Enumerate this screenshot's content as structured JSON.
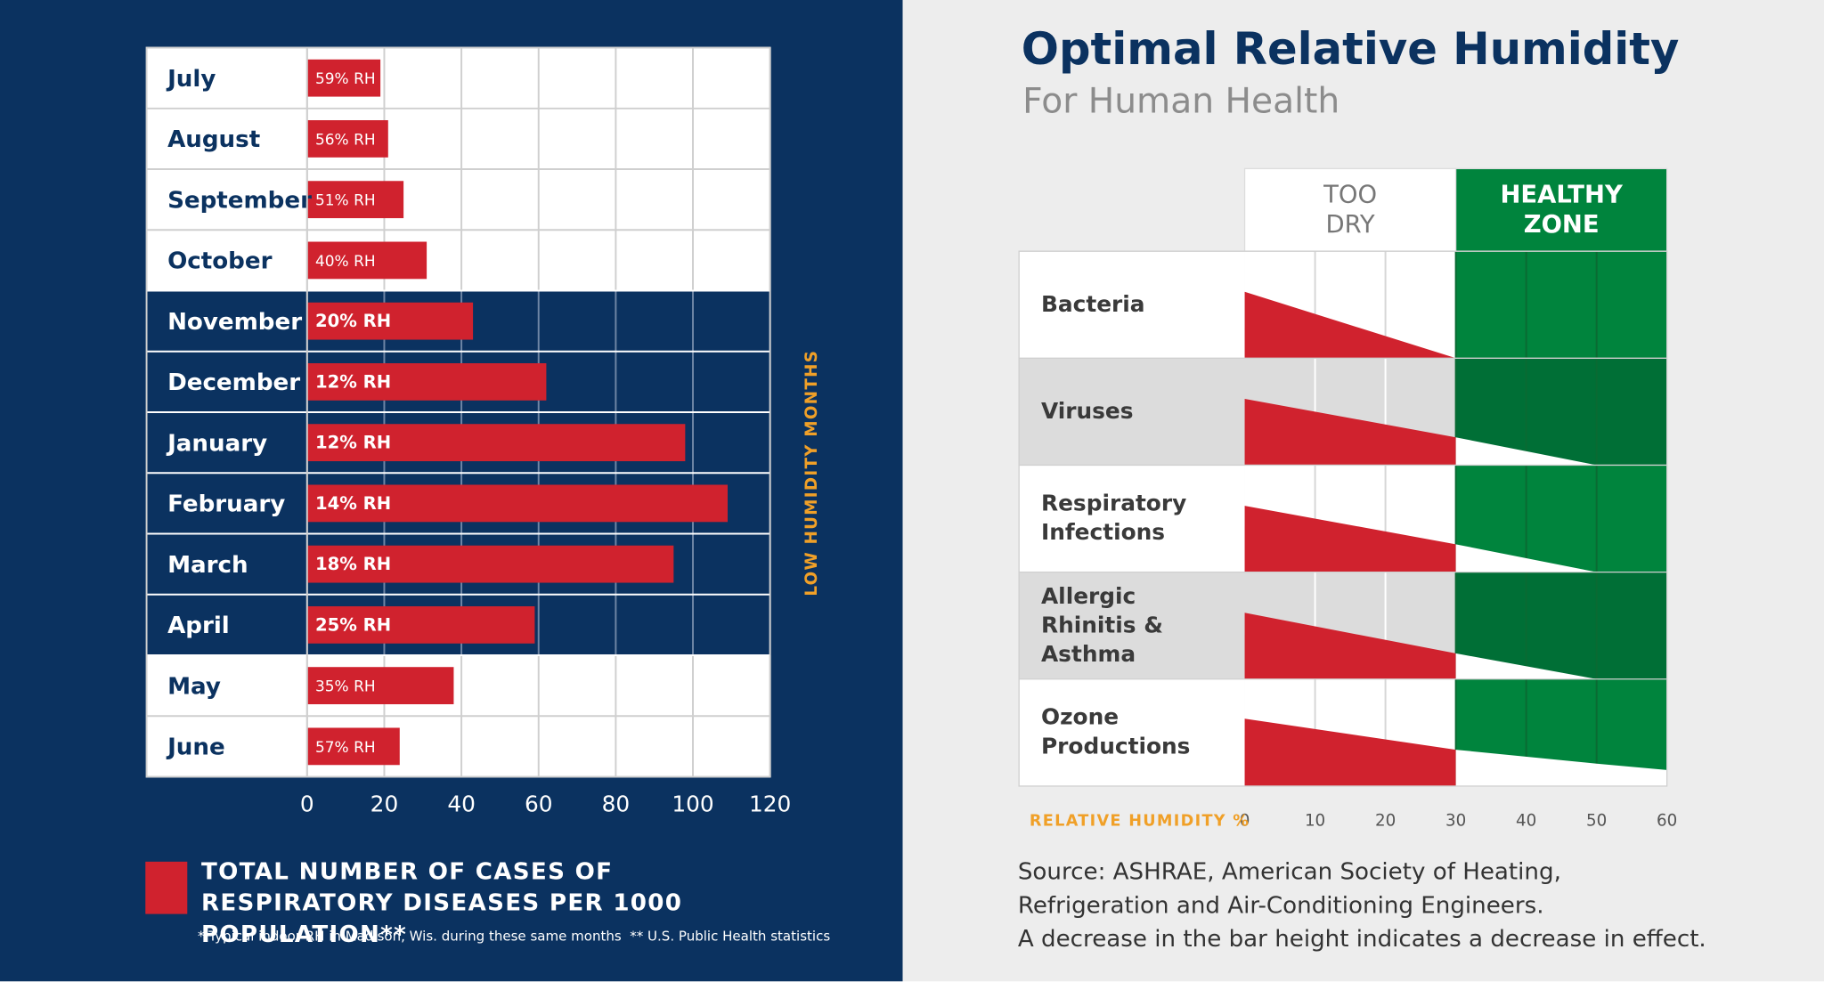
{
  "chart_data": [
    {
      "type": "bar",
      "categories": [
        "July",
        "August",
        "September",
        "October",
        "November",
        "December",
        "January",
        "February",
        "March",
        "April",
        "May",
        "June"
      ],
      "values": [
        19,
        21,
        25,
        31,
        43,
        62,
        98,
        109,
        95,
        59,
        38,
        24
      ],
      "humidity_labels": [
        "59% RH",
        "56% RH",
        "51% RH",
        "40% RH",
        "20% RH",
        "12% RH",
        "12% RH",
        "14% RH",
        "18% RH",
        "25% RH",
        "35% RH",
        "57% RH"
      ],
      "low_humidity": [
        false,
        false,
        false,
        false,
        true,
        true,
        true,
        true,
        true,
        true,
        false,
        false
      ],
      "bracket_label": "LOW HUMIDITY MONTHS",
      "series_name": "TOTAL NUMBER OF CASES OF RESPIRATORY DISEASES PER 1000 POPULATION**",
      "color": "#d0222e",
      "xlim": [
        0,
        120
      ],
      "xticks": [
        0,
        20,
        40,
        60,
        80,
        100,
        120
      ],
      "grid": true,
      "footnote": "* Typical indoor RH in Madison, Wis. during these same months  ** U.S. Public Health statistics"
    },
    {
      "type": "area",
      "title": "Optimal Relative Humidity",
      "subtitle": "For Human Health",
      "zones": [
        {
          "label": "TOO DRY",
          "from": 0,
          "to": 30,
          "color": "#ffffff",
          "wedge_color": "#d0222e"
        },
        {
          "label": "HEALTHY ZONE",
          "from": 30,
          "to": 60,
          "color": "#00843d",
          "wedge_color": "#ffffff"
        }
      ],
      "x": [
        0,
        30,
        50,
        60
      ],
      "series": [
        {
          "name": "Bacteria",
          "values": [
            62,
            0,
            null,
            null
          ]
        },
        {
          "name": "Viruses",
          "values": [
            62,
            26,
            0,
            null
          ]
        },
        {
          "name": "Respiratory Infections",
          "values": [
            62,
            26,
            0,
            null
          ]
        },
        {
          "name": "Allergic Rhinitis & Asthma",
          "values": [
            62,
            24,
            0,
            null
          ]
        },
        {
          "name": "Ozone Productions",
          "values": [
            63,
            34,
            21,
            15
          ]
        }
      ],
      "xlabel": "RELATIVE HUMIDITY %",
      "xlim": [
        0,
        60
      ],
      "xticks": [
        0,
        10,
        20,
        30,
        40,
        50,
        60
      ],
      "ylim": [
        0,
        100
      ],
      "grid": true,
      "source": "Source: ASHRAE, American Society of Heating, Refrigeration and Air-Conditioning Engineers.",
      "note": "A decrease in the bar height indicates a decrease in effect."
    }
  ]
}
